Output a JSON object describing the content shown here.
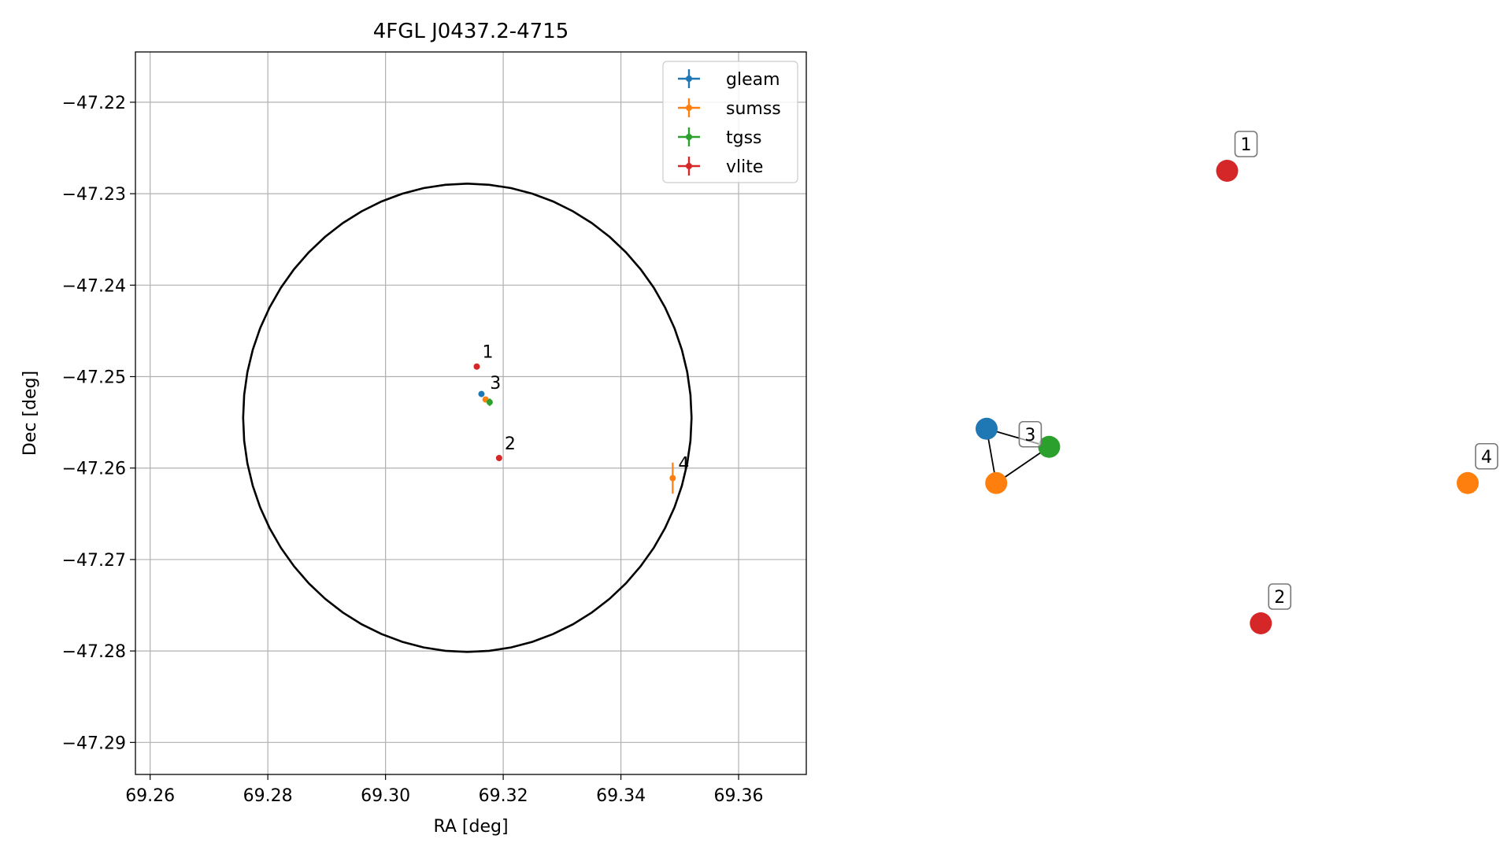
{
  "chart_data": [
    {
      "type": "scatter",
      "title": "4FGL J0437.2-4715",
      "xlabel": "RA [deg]",
      "ylabel": "Dec [deg]",
      "xlim": [
        69.2575,
        69.3715
      ],
      "ylim": [
        -47.2935,
        -47.2145
      ],
      "xticks": [
        69.26,
        69.28,
        69.3,
        69.32,
        69.34,
        69.36
      ],
      "xtick_labels": [
        "69.26",
        "69.28",
        "69.30",
        "69.32",
        "69.34",
        "69.36"
      ],
      "yticks": [
        -47.22,
        -47.23,
        -47.24,
        -47.25,
        -47.26,
        -47.27,
        -47.28,
        -47.29
      ],
      "ytick_labels": [
        "−47.22",
        "−47.23",
        "−47.24",
        "−47.25",
        "−47.26",
        "−47.27",
        "−47.28",
        "−47.29"
      ],
      "grid": true,
      "legend_position": "top-right",
      "circle": {
        "center": [
          69.3139,
          -47.2545
        ],
        "radius_ra": 0.0381,
        "radius_dec": 0.0256,
        "color": "#000000"
      },
      "series": [
        {
          "name": "gleam",
          "color": "#1f77b4",
          "points": [
            {
              "x": 69.3163,
              "y": -47.2519,
              "xerr": 0.0,
              "yerr": 0.0
            }
          ]
        },
        {
          "name": "sumss",
          "color": "#ff7f0e",
          "points": [
            {
              "x": 69.317,
              "y": -47.2525,
              "xerr": 0.0,
              "yerr": 0.0
            },
            {
              "x": 69.3488,
              "y": -47.2611,
              "xerr": 0.0004,
              "yerr": 0.0017
            }
          ]
        },
        {
          "name": "tgss",
          "color": "#2ca02c",
          "points": [
            {
              "x": 69.3177,
              "y": -47.2528,
              "xerr": 0.0,
              "yerr": 0.0004
            }
          ]
        },
        {
          "name": "vlite",
          "color": "#d62728",
          "points": [
            {
              "x": 69.3155,
              "y": -47.2489,
              "xerr": 0.0,
              "yerr": 0.0
            },
            {
              "x": 69.3193,
              "y": -47.2589,
              "xerr": 0.0,
              "yerr": 0.0
            }
          ]
        }
      ],
      "annotations": [
        {
          "text": "1",
          "x": 69.3155,
          "y": -47.2489
        },
        {
          "text": "3",
          "x": 69.3168,
          "y": -47.2523
        },
        {
          "text": "2",
          "x": 69.3193,
          "y": -47.2589
        },
        {
          "text": "4",
          "x": 69.3488,
          "y": -47.2611
        }
      ]
    },
    {
      "type": "network",
      "axes": false,
      "nodes": [
        {
          "id": "vlite-1",
          "color": "#d62728",
          "x": 0.5,
          "y": 1.0
        },
        {
          "id": "gleam-3",
          "color": "#1f77b4",
          "x": 0.0,
          "y": 0.43
        },
        {
          "id": "sumss-3",
          "color": "#ff7f0e",
          "x": 0.02,
          "y": 0.31
        },
        {
          "id": "tgss-3",
          "color": "#2ca02c",
          "x": 0.13,
          "y": 0.39
        },
        {
          "id": "sumss-4",
          "color": "#ff7f0e",
          "x": 1.0,
          "y": 0.31
        },
        {
          "id": "vlite-2",
          "color": "#d62728",
          "x": 0.57,
          "y": 0.0
        }
      ],
      "edges": [
        [
          "gleam-3",
          "sumss-3"
        ],
        [
          "gleam-3",
          "tgss-3"
        ],
        [
          "sumss-3",
          "tgss-3"
        ]
      ],
      "labels": [
        {
          "text": "1",
          "node": "vlite-1"
        },
        {
          "text": "3",
          "node": "tgss-3"
        },
        {
          "text": "4",
          "node": "sumss-4"
        },
        {
          "text": "2",
          "node": "vlite-2"
        }
      ]
    }
  ]
}
